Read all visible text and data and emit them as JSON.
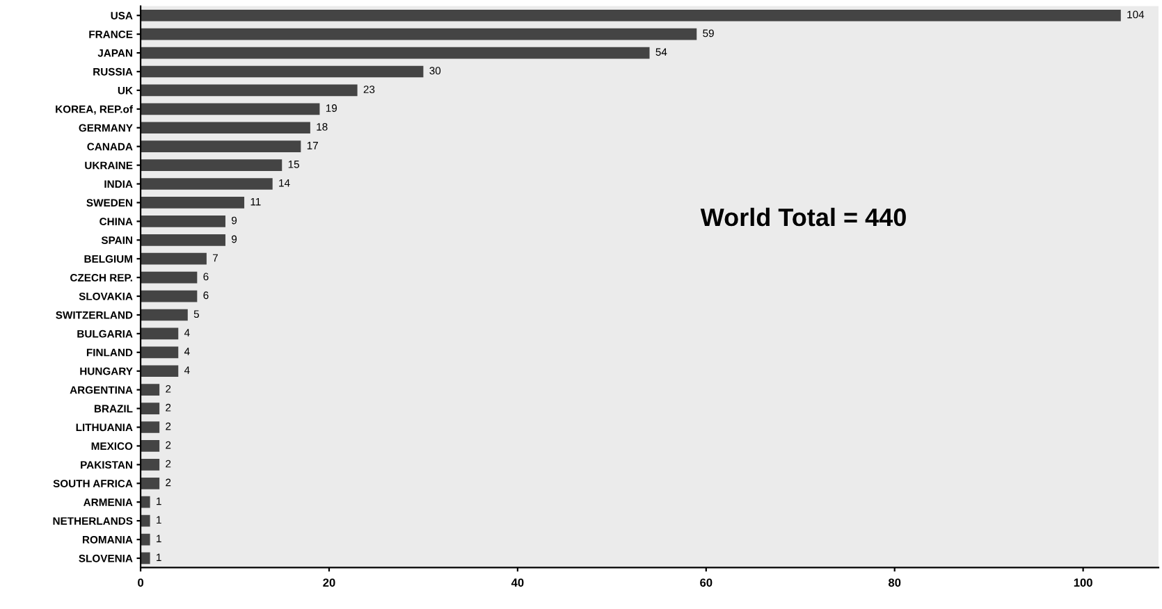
{
  "chart_data": {
    "type": "bar",
    "orientation": "horizontal",
    "categories": [
      "USA",
      "FRANCE",
      "JAPAN",
      "RUSSIA",
      "UK",
      "KOREA, REP.of",
      "GERMANY",
      "CANADA",
      "UKRAINE",
      "INDIA",
      "SWEDEN",
      "CHINA",
      "SPAIN",
      "BELGIUM",
      "CZECH REP.",
      "SLOVAKIA",
      "SWITZERLAND",
      "BULGARIA",
      "FINLAND",
      "HUNGARY",
      "ARGENTINA",
      "BRAZIL",
      "LITHUANIA",
      "MEXICO",
      "PAKISTAN",
      "SOUTH AFRICA",
      "ARMENIA",
      "NETHERLANDS",
      "ROMANIA",
      "SLOVENIA"
    ],
    "values": [
      104,
      59,
      54,
      30,
      23,
      19,
      18,
      17,
      15,
      14,
      11,
      9,
      9,
      7,
      6,
      6,
      5,
      4,
      4,
      4,
      2,
      2,
      2,
      2,
      2,
      2,
      1,
      1,
      1,
      1
    ],
    "color": "#444444",
    "data_labels": true,
    "xlim": [
      0,
      108
    ],
    "xticks": [
      0,
      20,
      40,
      60,
      80,
      100
    ],
    "grid": false,
    "annotations": [
      "World Total = 440"
    ]
  }
}
